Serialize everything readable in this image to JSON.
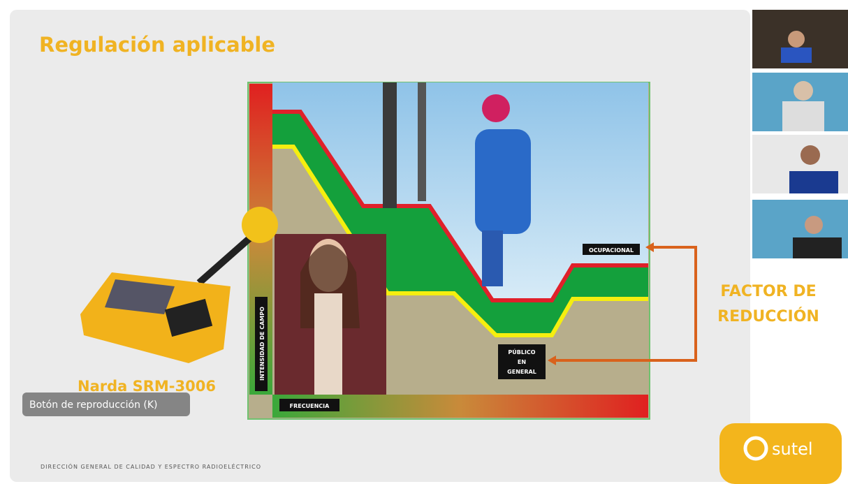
{
  "slide": {
    "title": "Regulación aplicable",
    "device_label": "Narda SRM-3006",
    "y_axis_label": "INTENSIDAD DE CAMPO",
    "x_axis_label": "FRECUENCIA",
    "occupational_label": "OCUPACIONAL",
    "public_label_lines": [
      "PÚBLICO",
      "EN",
      "GENERAL"
    ],
    "factor_lines": [
      "FACTOR DE",
      "REDUCCIÓN"
    ],
    "footer": "DIRECCIÓN GENERAL DE CALIDAD Y ESPECTRO RADIOELÉCTRICO",
    "logo": "sutel"
  },
  "player": {
    "tooltip": "Botón de reproducción (K)"
  }
}
